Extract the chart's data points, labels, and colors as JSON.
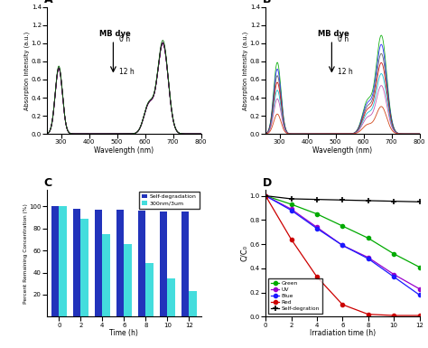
{
  "panel_A": {
    "title": "A",
    "xlabel": "Wavelength (nm)",
    "ylabel": "Absorption intensity (a.u.)",
    "xlim": [
      250,
      800
    ],
    "ylim": [
      0,
      1.4
    ],
    "yticks": [
      0.0,
      0.2,
      0.4,
      0.6,
      0.8,
      1.0,
      1.2,
      1.4
    ],
    "scales": [
      1.0,
      0.999,
      0.997,
      0.995,
      0.993,
      0.991,
      1.025
    ],
    "colors_a": [
      "#550055",
      "#550055",
      "#550055",
      "#550055",
      "#550055",
      "#550055",
      "#006400"
    ]
  },
  "panel_B": {
    "title": "B",
    "xlabel": "Wavelength (nm)",
    "ylabel": "Absorption intensity (a.u.)",
    "xlim": [
      250,
      800
    ],
    "ylim": [
      0,
      1.4
    ],
    "yticks": [
      0.0,
      0.2,
      0.4,
      0.6,
      0.8,
      1.0,
      1.2,
      1.4
    ],
    "scales_b": [
      1.08,
      0.98,
      0.88,
      0.78,
      0.66,
      0.53,
      0.3
    ],
    "colors_b": [
      "#00AA00",
      "#1a1aff",
      "#555555",
      "#cc0000",
      "#00bbcc",
      "#bb44aa",
      "#cc3300"
    ]
  },
  "panel_C": {
    "title": "C",
    "xlabel": "Time (h)",
    "ylabel": "Percent Remaining Concentration (%)",
    "ylim": [
      0,
      115
    ],
    "yticks": [
      20,
      40,
      60,
      80,
      100
    ],
    "categories": [
      0,
      2,
      4,
      6,
      8,
      10,
      12
    ],
    "self_deg": [
      100,
      98,
      97,
      97,
      96,
      95,
      95
    ],
    "filter_300": [
      100,
      89,
      75,
      66,
      49,
      35,
      23
    ],
    "color_self": "#2233bb",
    "color_300": "#44dddd",
    "legend_self": "Self-degradation",
    "legend_300": "300nm/3um"
  },
  "panel_D": {
    "title": "D",
    "xlabel": "Irradiation time (h)",
    "ylabel": "C/C₀",
    "xlim": [
      0,
      12
    ],
    "ylim": [
      0,
      1.05
    ],
    "yticks": [
      0.0,
      0.2,
      0.4,
      0.6,
      0.8,
      1.0
    ],
    "xticks": [
      0,
      2,
      4,
      6,
      8,
      10,
      12
    ],
    "legend_entries": [
      "Green",
      "UV",
      "Blue",
      "Red",
      "Self-degration"
    ],
    "legend_colors": [
      "#00AA00",
      "#9900cc",
      "#1a1aff",
      "#cc0000",
      "#000000"
    ],
    "legend_markers": [
      "o",
      "o",
      "o",
      "o",
      "+"
    ],
    "data_green": [
      1.0,
      0.93,
      0.85,
      0.75,
      0.65,
      0.52,
      0.41
    ],
    "data_uv": [
      1.0,
      0.89,
      0.74,
      0.59,
      0.49,
      0.35,
      0.23
    ],
    "data_blue": [
      1.0,
      0.88,
      0.73,
      0.59,
      0.48,
      0.33,
      0.18
    ],
    "data_red": [
      1.0,
      0.64,
      0.33,
      0.1,
      0.02,
      0.01,
      0.01
    ],
    "data_self": [
      1.0,
      0.975,
      0.97,
      0.965,
      0.96,
      0.955,
      0.95
    ]
  }
}
